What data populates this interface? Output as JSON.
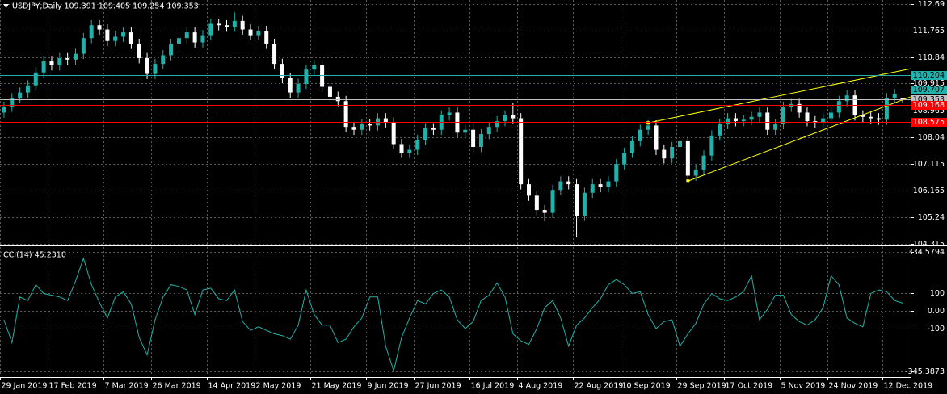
{
  "chart_data": [
    {
      "type": "candlestick",
      "title": "USDJPY,Daily  109.391 109.405 109.254 109.353",
      "categories": [
        "29 Jan 2019",
        null,
        null,
        null,
        null,
        null,
        "17 Feb 2019",
        null,
        null,
        null,
        null,
        null,
        null,
        "7 Mar 2019",
        null,
        null,
        null,
        null,
        null,
        "26 Mar 2019",
        null,
        null,
        null,
        null,
        null,
        null,
        "14 Apr 2019",
        null,
        null,
        null,
        null,
        null,
        "2 May 2019",
        null,
        null,
        null,
        null,
        null,
        null,
        "21 May 2019",
        null,
        null,
        null,
        null,
        null,
        null,
        "9 Jun 2019",
        null,
        null,
        null,
        null,
        null,
        "27 Jun 2019",
        null,
        null,
        null,
        null,
        null,
        null,
        "16 Jul 2019",
        null,
        null,
        null,
        null,
        null,
        "4 Aug 2019",
        null,
        null,
        null,
        null,
        null,
        null,
        "22 Aug 2019",
        null,
        null,
        null,
        null,
        null,
        "10 Sep 2019",
        null,
        null,
        null,
        null,
        null,
        null,
        "29 Sep 2019",
        null,
        null,
        null,
        null,
        null,
        "17 Oct 2019",
        null,
        null,
        null,
        null,
        null,
        null,
        "5 Nov 2019",
        null,
        null,
        null,
        null,
        null,
        "24 Nov 2019",
        null,
        null,
        null,
        null,
        null,
        null,
        "12 Dec 2019",
        null,
        null
      ],
      "candles": [
        [
          108.9,
          109.28,
          108.72,
          109.1
        ],
        [
          109.1,
          109.58,
          108.92,
          109.4
        ],
        [
          109.4,
          109.78,
          109.22,
          109.6
        ],
        [
          109.6,
          110.03,
          109.42,
          109.85
        ],
        [
          109.85,
          110.48,
          109.67,
          110.3
        ],
        [
          110.3,
          110.88,
          110.12,
          110.7
        ],
        [
          110.7,
          110.88,
          110.37,
          110.55
        ],
        [
          110.55,
          110.98,
          110.37,
          110.8
        ],
        [
          110.8,
          110.98,
          110.57,
          110.75
        ],
        [
          110.75,
          111.13,
          110.57,
          110.95
        ],
        [
          110.95,
          111.68,
          110.77,
          111.5
        ],
        [
          111.5,
          112.13,
          111.32,
          111.95
        ],
        [
          111.95,
          112.13,
          111.62,
          111.8
        ],
        [
          111.8,
          111.98,
          111.22,
          111.4
        ],
        [
          111.4,
          111.73,
          111.22,
          111.55
        ],
        [
          111.55,
          111.88,
          111.37,
          111.7
        ],
        [
          111.7,
          111.88,
          111.12,
          111.3
        ],
        [
          111.3,
          111.48,
          110.62,
          110.8
        ],
        [
          110.8,
          110.98,
          110.07,
          110.25
        ],
        [
          110.25,
          110.78,
          110.07,
          110.6
        ],
        [
          110.6,
          111.08,
          110.42,
          110.9
        ],
        [
          110.9,
          111.48,
          110.72,
          111.3
        ],
        [
          111.3,
          111.68,
          111.12,
          111.5
        ],
        [
          111.5,
          111.88,
          111.32,
          111.7
        ],
        [
          111.7,
          111.88,
          111.17,
          111.35
        ],
        [
          111.35,
          111.78,
          111.17,
          111.6
        ],
        [
          111.6,
          112.18,
          111.42,
          112.0
        ],
        [
          112.0,
          112.18,
          111.77,
          111.95
        ],
        [
          111.95,
          112.13,
          111.72,
          111.9
        ],
        [
          111.9,
          112.4,
          111.72,
          112.1
        ],
        [
          112.1,
          112.28,
          111.62,
          111.8
        ],
        [
          111.8,
          111.98,
          111.42,
          111.6
        ],
        [
          111.6,
          111.93,
          111.42,
          111.75
        ],
        [
          111.75,
          111.93,
          111.12,
          111.3
        ],
        [
          111.3,
          111.48,
          110.42,
          110.6
        ],
        [
          110.6,
          110.78,
          109.92,
          110.1
        ],
        [
          110.1,
          110.28,
          109.42,
          109.6
        ],
        [
          109.6,
          110.08,
          109.42,
          109.9
        ],
        [
          109.9,
          110.58,
          109.72,
          110.4
        ],
        [
          110.4,
          110.73,
          110.22,
          110.55
        ],
        [
          110.55,
          110.73,
          109.62,
          109.8
        ],
        [
          109.8,
          109.98,
          109.27,
          109.45
        ],
        [
          109.45,
          109.63,
          109.12,
          109.3
        ],
        [
          109.3,
          109.48,
          108.22,
          108.4
        ],
        [
          108.4,
          108.58,
          108.12,
          108.3
        ],
        [
          108.3,
          108.68,
          108.12,
          108.5
        ],
        [
          108.5,
          108.68,
          108.27,
          108.45
        ],
        [
          108.45,
          108.88,
          108.27,
          108.7
        ],
        [
          108.7,
          108.88,
          108.37,
          108.55
        ],
        [
          108.55,
          108.73,
          107.62,
          107.8
        ],
        [
          107.8,
          107.98,
          107.32,
          107.5
        ],
        [
          107.5,
          107.78,
          107.32,
          107.6
        ],
        [
          107.6,
          108.13,
          107.42,
          107.95
        ],
        [
          107.95,
          108.53,
          107.77,
          108.35
        ],
        [
          108.35,
          108.53,
          108.12,
          108.3
        ],
        [
          108.3,
          108.98,
          108.12,
          108.8
        ],
        [
          108.8,
          109.08,
          108.62,
          108.9
        ],
        [
          108.9,
          109.08,
          108.02,
          108.2
        ],
        [
          108.2,
          108.48,
          108.02,
          108.3
        ],
        [
          108.3,
          108.48,
          107.52,
          107.7
        ],
        [
          107.7,
          108.33,
          107.52,
          108.15
        ],
        [
          108.15,
          108.58,
          107.97,
          108.4
        ],
        [
          108.4,
          108.78,
          108.22,
          108.6
        ],
        [
          108.6,
          108.98,
          108.42,
          108.8
        ],
        [
          108.8,
          109.25,
          108.52,
          108.7
        ],
        [
          108.7,
          108.88,
          106.22,
          106.4
        ],
        [
          106.4,
          106.58,
          105.82,
          106.0
        ],
        [
          106.0,
          106.18,
          105.32,
          105.5
        ],
        [
          105.5,
          105.68,
          105.1,
          105.4
        ],
        [
          105.4,
          106.38,
          105.22,
          106.2
        ],
        [
          106.2,
          106.68,
          106.02,
          106.5
        ],
        [
          106.5,
          106.68,
          106.22,
          106.4
        ],
        [
          106.4,
          106.58,
          104.55,
          105.3
        ],
        [
          105.3,
          106.28,
          105.12,
          106.1
        ],
        [
          106.1,
          106.58,
          105.92,
          106.4
        ],
        [
          106.4,
          106.58,
          106.12,
          106.3
        ],
        [
          106.3,
          106.68,
          106.12,
          106.5
        ],
        [
          106.5,
          107.28,
          106.32,
          107.1
        ],
        [
          107.1,
          107.68,
          106.92,
          107.5
        ],
        [
          107.5,
          108.08,
          107.32,
          107.9
        ],
        [
          107.9,
          108.48,
          107.72,
          108.3
        ],
        [
          108.3,
          108.63,
          108.12,
          108.45
        ],
        [
          108.45,
          108.63,
          107.42,
          107.6
        ],
        [
          107.6,
          107.78,
          107.12,
          107.3
        ],
        [
          107.3,
          107.88,
          107.12,
          107.7
        ],
        [
          107.7,
          108.08,
          107.52,
          107.9
        ],
        [
          107.9,
          108.08,
          106.52,
          106.7
        ],
        [
          106.7,
          107.08,
          106.52,
          106.9
        ],
        [
          106.9,
          107.58,
          106.72,
          107.4
        ],
        [
          107.4,
          108.28,
          107.22,
          108.1
        ],
        [
          108.1,
          108.68,
          107.92,
          108.5
        ],
        [
          108.5,
          108.88,
          108.32,
          108.7
        ],
        [
          108.7,
          108.88,
          108.42,
          108.6
        ],
        [
          108.6,
          108.83,
          108.42,
          108.65
        ],
        [
          108.65,
          108.93,
          108.47,
          108.75
        ],
        [
          108.75,
          109.08,
          108.57,
          108.9
        ],
        [
          108.9,
          109.08,
          108.12,
          108.3
        ],
        [
          108.3,
          108.68,
          108.12,
          108.5
        ],
        [
          108.5,
          109.28,
          108.32,
          109.1
        ],
        [
          109.1,
          109.38,
          108.92,
          109.2
        ],
        [
          109.2,
          109.38,
          108.72,
          108.9
        ],
        [
          108.9,
          109.08,
          108.42,
          108.6
        ],
        [
          108.6,
          108.78,
          108.37,
          108.55
        ],
        [
          108.55,
          108.88,
          108.37,
          108.7
        ],
        [
          108.7,
          109.08,
          108.52,
          108.9
        ],
        [
          108.9,
          109.48,
          108.72,
          109.3
        ],
        [
          109.3,
          109.68,
          109.12,
          109.5
        ],
        [
          109.5,
          109.68,
          108.62,
          108.8
        ],
        [
          108.8,
          108.98,
          108.57,
          108.75
        ],
        [
          108.75,
          108.93,
          108.52,
          108.7
        ],
        [
          108.7,
          108.88,
          108.47,
          108.65
        ],
        [
          108.65,
          109.58,
          108.47,
          109.4
        ],
        [
          109.4,
          109.73,
          109.22,
          109.55
        ],
        [
          109.391,
          109.405,
          109.254,
          109.353
        ]
      ],
      "bull_color": "#20b2aa",
      "bear_color": "#ffffff",
      "ylim": [
        104.29,
        112.83
      ],
      "yticks": [
        112.69,
        111.765,
        110.84,
        109.915,
        108.965,
        108.04,
        107.115,
        106.165,
        105.24,
        104.315
      ],
      "grid": true,
      "levels": [
        {
          "value": 110.204,
          "color": "#20b2aa"
        },
        {
          "value": 109.707,
          "color": "#20b2aa"
        },
        {
          "value": 109.353,
          "color": "#c0c0c0"
        },
        {
          "value": 109.168,
          "color": "#ff0000"
        },
        {
          "value": 108.575,
          "color": "#ff0000"
        }
      ],
      "trendlines": [
        {
          "x": [
            81,
            114
          ],
          "y": [
            108.54,
            110.43
          ],
          "color": "#ffff00"
        },
        {
          "x": [
            86,
            114
          ],
          "y": [
            106.51,
            109.45
          ],
          "color": "#ffff00"
        }
      ]
    },
    {
      "type": "line",
      "title": "CCI(14) 45.2310",
      "color": "#20b2aa",
      "values": [
        -50,
        -180,
        80,
        60,
        150,
        100,
        90,
        80,
        60,
        170,
        300,
        150,
        50,
        -40,
        80,
        110,
        40,
        -150,
        -250,
        -50,
        80,
        150,
        140,
        120,
        -20,
        120,
        130,
        70,
        60,
        120,
        -60,
        -110,
        -90,
        -110,
        -130,
        -140,
        -160,
        -80,
        120,
        -20,
        -80,
        -80,
        -180,
        -160,
        -90,
        -40,
        80,
        80,
        -200,
        -340,
        -150,
        -40,
        60,
        40,
        100,
        120,
        80,
        -50,
        -100,
        -60,
        60,
        90,
        160,
        80,
        -130,
        -170,
        -190,
        -100,
        20,
        60,
        -40,
        -200,
        -80,
        -40,
        20,
        70,
        150,
        180,
        150,
        100,
        110,
        -20,
        -100,
        -60,
        -50,
        -200,
        -130,
        -70,
        40,
        100,
        70,
        60,
        80,
        110,
        200,
        -50,
        10,
        90,
        90,
        -20,
        -60,
        -80,
        -50,
        20,
        200,
        150,
        -40,
        -70,
        -90,
        100,
        120,
        110,
        60,
        45.231
      ],
      "ylim": [
        -371,
        364
      ],
      "yticks": [
        334.5794,
        100,
        {
          "value": 0,
          "label": "0.00"
        },
        -100,
        -345.3873
      ],
      "grid": true
    }
  ]
}
